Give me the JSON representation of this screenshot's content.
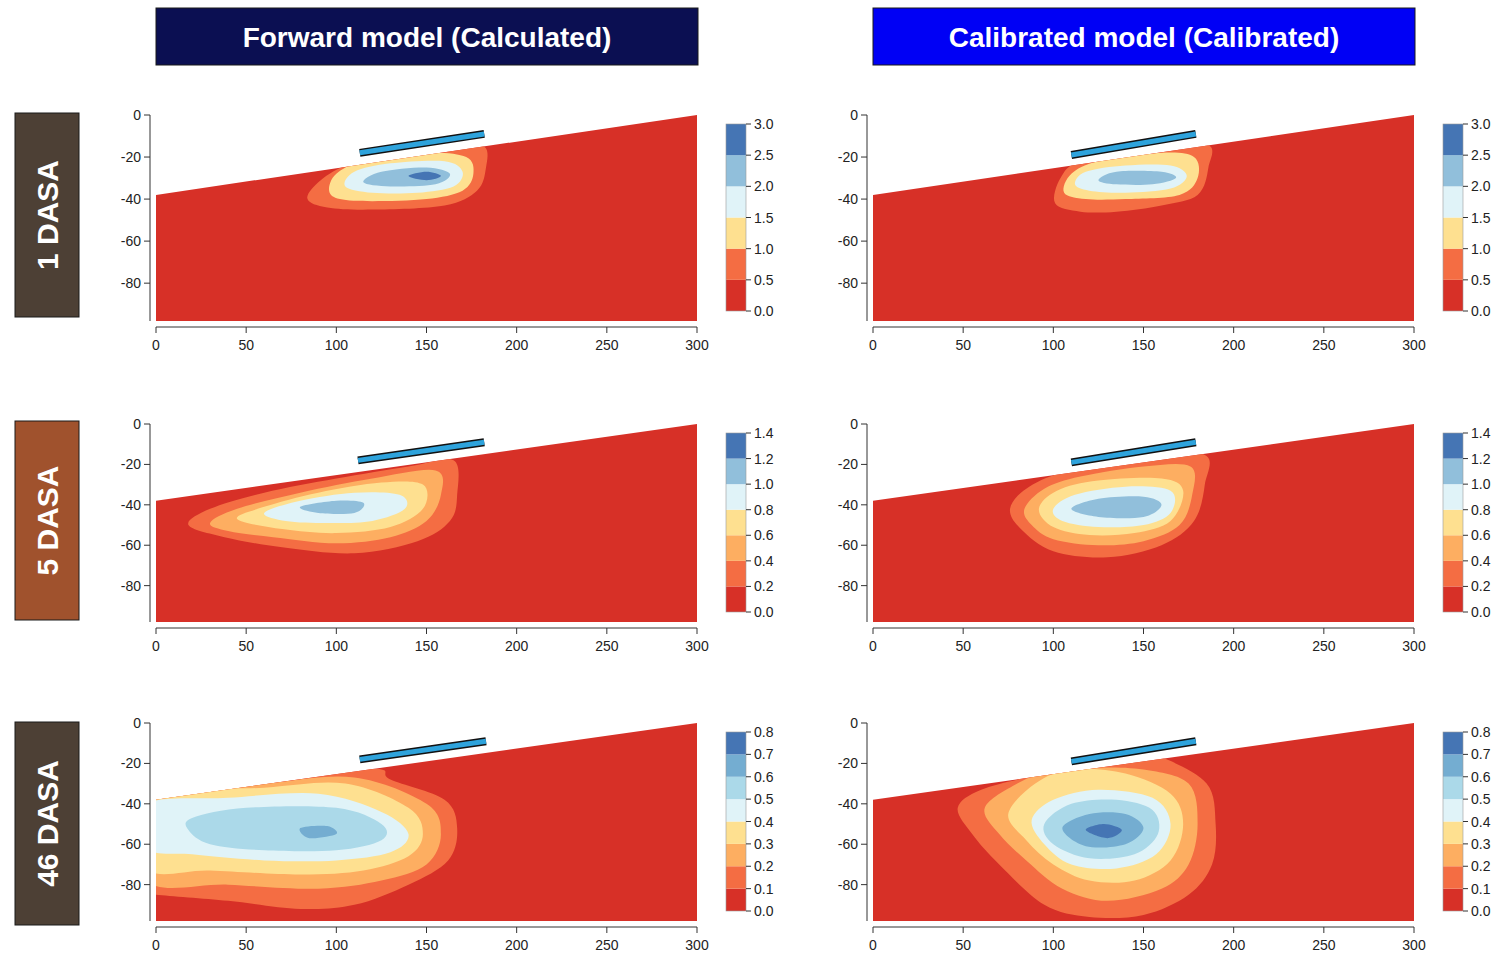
{
  "columns": [
    "Forward model (Calculated)",
    "Calibrated model (Calibrated)"
  ],
  "rows": [
    "1 DASA",
    "5 DASA",
    "46 DASA"
  ],
  "chart_data": [
    {
      "type": "contour",
      "xlim": [
        0,
        300
      ],
      "ylim": [
        -98,
        0
      ],
      "xticks": [
        0,
        50,
        100,
        150,
        200,
        250,
        300
      ],
      "yticks": [
        0,
        -20,
        -40,
        -60,
        -80
      ],
      "zlim": [
        0,
        3
      ],
      "zticks": [
        {
          "value": 0,
          "label": "0.0"
        },
        0.5,
        {
          "value": 1,
          "label": "1.0"
        },
        1.5,
        {
          "value": 2,
          "label": "2.0"
        },
        2.5,
        {
          "value": 3,
          "label": "3.0"
        }
      ],
      "colors": [
        "#d73027",
        "#f46d43",
        "#fee090",
        "#e0f3f8",
        "#91bfdb",
        "#4575b4"
      ],
      "surface": {
        "x": [
          0,
          300
        ],
        "y": [
          -38,
          0
        ]
      },
      "emitter": {
        "x": [
          113,
          182
        ],
        "y": [
          -18,
          -9
        ]
      },
      "contours": [
        {
          "level": 0.5,
          "x": [
            84,
            90,
            105,
            130,
            165,
            182,
            183,
            178,
            160,
            120,
            95
          ],
          "y": [
            -40,
            -32,
            -24,
            -18,
            -14,
            -15,
            -25,
            -36,
            -43,
            -45,
            -44
          ]
        },
        {
          "level": 1,
          "x": [
            96,
            100,
            115,
            150,
            172,
            176,
            170,
            150,
            120,
            102
          ],
          "y": [
            -36,
            -28,
            -22,
            -18,
            -20,
            -28,
            -36,
            -40,
            -41,
            -40
          ]
        },
        {
          "level": 1.5,
          "x": [
            105,
            110,
            130,
            160,
            170,
            165,
            145,
            120
          ],
          "y": [
            -34,
            -27,
            -23,
            -22,
            -27,
            -34,
            -37,
            -37
          ]
        },
        {
          "level": 2,
          "x": [
            115,
            125,
            150,
            163,
            155,
            130
          ],
          "y": [
            -32,
            -27,
            -25,
            -28,
            -33,
            -34
          ]
        },
        {
          "level": 2.5,
          "x": [
            140,
            150,
            158,
            150
          ],
          "y": [
            -29,
            -27,
            -29,
            -31
          ]
        }
      ]
    },
    {
      "type": "contour",
      "xlim": [
        0,
        300
      ],
      "ylim": [
        -98,
        0
      ],
      "xticks": [
        0,
        50,
        100,
        150,
        200,
        250,
        300
      ],
      "yticks": [
        0,
        -20,
        -40,
        -60,
        -80
      ],
      "zlim": [
        0,
        3
      ],
      "zticks": [
        {
          "value": 0,
          "label": "0.0"
        },
        0.5,
        {
          "value": 1,
          "label": "1.0"
        },
        1.5,
        {
          "value": 2,
          "label": "2.0"
        },
        2.5,
        {
          "value": 3,
          "label": "3.0"
        }
      ],
      "colors": [
        "#d73027",
        "#f46d43",
        "#fee090",
        "#e0f3f8",
        "#91bfdb",
        "#4575b4"
      ],
      "surface": {
        "x": [
          0,
          300
        ],
        "y": [
          -38,
          0
        ]
      },
      "emitter": {
        "x": [
          110,
          179
        ],
        "y": [
          -19,
          -9
        ]
      },
      "contours": [
        {
          "level": 0.5,
          "x": [
            101,
            104,
            115,
            150,
            185,
            186,
            180,
            160,
            135,
            115
          ],
          "y": [
            -42,
            -30,
            -22,
            -17,
            -14,
            -25,
            -38,
            -43,
            -46,
            -46
          ]
        },
        {
          "level": 1,
          "x": [
            106,
            110,
            125,
            160,
            178,
            180,
            170,
            140,
            118
          ],
          "y": [
            -37,
            -28,
            -22,
            -18,
            -20,
            -30,
            -38,
            -40,
            -40
          ]
        },
        {
          "level": 1.5,
          "x": [
            112,
            118,
            140,
            165,
            174,
            165,
            140,
            120
          ],
          "y": [
            -33,
            -27,
            -24,
            -24,
            -29,
            -35,
            -37,
            -36
          ]
        },
        {
          "level": 2,
          "x": [
            125,
            135,
            160,
            168,
            155,
            135
          ],
          "y": [
            -31,
            -27,
            -27,
            -30,
            -33,
            -33
          ]
        }
      ]
    },
    {
      "type": "contour",
      "xlim": [
        0,
        300
      ],
      "ylim": [
        -98,
        0
      ],
      "xticks": [
        0,
        50,
        100,
        150,
        200,
        250,
        300
      ],
      "yticks": [
        0,
        -20,
        -40,
        -60,
        -80
      ],
      "zlim": [
        0,
        1.4
      ],
      "zticks": [
        {
          "value": 0,
          "label": "0.0"
        },
        0.2,
        0.4,
        0.6,
        0.8,
        {
          "value": 1,
          "label": "1.0"
        },
        1.2,
        1.4
      ],
      "colors": [
        "#d73027",
        "#f46d43",
        "#fdae61",
        "#fee090",
        "#e0f3f8",
        "#91bfdb",
        "#4575b4"
      ],
      "surface": {
        "x": [
          0,
          300
        ],
        "y": [
          -38,
          0
        ]
      },
      "emitter": {
        "x": [
          112,
          182
        ],
        "y": [
          -18,
          -9
        ]
      },
      "contours": [
        {
          "level": 0.2,
          "x": [
            18,
            30,
            60,
            100,
            140,
            165,
            167,
            163,
            145,
            110,
            70,
            38
          ],
          "y": [
            -50,
            -42,
            -34,
            -27,
            -21,
            -18,
            -35,
            -48,
            -58,
            -64,
            -61,
            -56
          ]
        },
        {
          "level": 0.4,
          "x": [
            30,
            45,
            80,
            120,
            155,
            158,
            150,
            130,
            100,
            65,
            40
          ],
          "y": [
            -49,
            -42,
            -34,
            -27,
            -23,
            -35,
            -48,
            -56,
            -59,
            -56,
            -53
          ]
        },
        {
          "level": 0.6,
          "x": [
            45,
            60,
            90,
            125,
            148,
            148,
            130,
            100,
            70
          ],
          "y": [
            -47,
            -41,
            -34,
            -29,
            -30,
            -42,
            -51,
            -54,
            -52
          ]
        },
        {
          "level": 0.8,
          "x": [
            60,
            80,
            110,
            135,
            138,
            120,
            95,
            72
          ],
          "y": [
            -44,
            -38,
            -34,
            -35,
            -42,
            -48,
            -49,
            -48
          ]
        },
        {
          "level": 1,
          "x": [
            80,
            100,
            115,
            110,
            90
          ],
          "y": [
            -41,
            -38,
            -39,
            -44,
            -44
          ]
        }
      ]
    },
    {
      "type": "contour",
      "xlim": [
        0,
        300
      ],
      "ylim": [
        -98,
        0
      ],
      "xticks": [
        0,
        50,
        100,
        150,
        200,
        250,
        300
      ],
      "yticks": [
        0,
        -20,
        -40,
        -60,
        -80
      ],
      "zlim": [
        0,
        1.4
      ],
      "zticks": [
        {
          "value": 0,
          "label": "0.0"
        },
        0.2,
        0.4,
        0.6,
        0.8,
        {
          "value": 1,
          "label": "1.0"
        },
        1.2,
        1.4
      ],
      "colors": [
        "#d73027",
        "#f46d43",
        "#fdae61",
        "#fee090",
        "#e0f3f8",
        "#91bfdb",
        "#4575b4"
      ],
      "surface": {
        "x": [
          0,
          300
        ],
        "y": [
          -38,
          0
        ]
      },
      "emitter": {
        "x": [
          110,
          179
        ],
        "y": [
          -19,
          -9
        ]
      },
      "contours": [
        {
          "level": 0.2,
          "x": [
            76,
            85,
            105,
            140,
            183,
            184,
            178,
            160,
            130,
            100,
            82
          ],
          "y": [
            -42,
            -32,
            -24,
            -18,
            -15,
            -30,
            -48,
            -60,
            -66,
            -63,
            -52
          ]
        },
        {
          "level": 0.4,
          "x": [
            84,
            95,
            115,
            150,
            176,
            177,
            170,
            150,
            125,
            100,
            88
          ],
          "y": [
            -42,
            -32,
            -26,
            -21,
            -21,
            -35,
            -50,
            -58,
            -60,
            -57,
            -50
          ]
        },
        {
          "level": 0.6,
          "x": [
            92,
            102,
            125,
            160,
            172,
            165,
            145,
            120,
            100
          ],
          "y": [
            -42,
            -33,
            -28,
            -27,
            -33,
            -48,
            -54,
            -55,
            -51
          ]
        },
        {
          "level": 0.8,
          "x": [
            100,
            112,
            140,
            165,
            165,
            150,
            125,
            105
          ],
          "y": [
            -42,
            -35,
            -31,
            -33,
            -44,
            -50,
            -51,
            -48
          ]
        },
        {
          "level": 1,
          "x": [
            110,
            125,
            150,
            160,
            150,
            125
          ],
          "y": [
            -42,
            -37,
            -36,
            -40,
            -46,
            -46
          ]
        }
      ]
    },
    {
      "type": "contour",
      "xlim": [
        0,
        300
      ],
      "ylim": [
        -98,
        0
      ],
      "xticks": [
        0,
        50,
        100,
        150,
        200,
        250,
        300
      ],
      "yticks": [
        0,
        -20,
        -40,
        -60,
        -80
      ],
      "zlim": [
        0,
        0.8
      ],
      "zticks": [
        {
          "value": 0,
          "label": "0.0"
        },
        0.1,
        0.2,
        0.3,
        0.4,
        0.5,
        0.6,
        0.7,
        0.8
      ],
      "colors": [
        "#d73027",
        "#f46d43",
        "#fdae61",
        "#fee090",
        "#e0f3f8",
        "#abd9e9",
        "#74add1",
        "#4575b4"
      ],
      "surface": {
        "x": [
          0,
          300
        ],
        "y": [
          -38,
          0
        ]
      },
      "emitter": {
        "x": [
          113,
          183
        ],
        "y": [
          -18,
          -9
        ]
      },
      "contours": [
        {
          "level": 0.1,
          "x": [
            -5,
            50,
            100,
            125,
            130,
            160,
            167,
            162,
            140,
            110,
            80,
            40,
            0,
            -5
          ],
          "y": [
            -36,
            -30,
            -24,
            -23,
            -28,
            -38,
            -52,
            -68,
            -80,
            -90,
            -92,
            -88,
            -85,
            -84
          ]
        },
        {
          "level": 0.2,
          "x": [
            -5,
            60,
            110,
            150,
            158,
            150,
            125,
            90,
            40,
            -5
          ],
          "y": [
            -36,
            -30,
            -27,
            -40,
            -55,
            -70,
            -78,
            -82,
            -80,
            -78
          ]
        },
        {
          "level": 0.3,
          "x": [
            -5,
            60,
            105,
            140,
            148,
            140,
            115,
            80,
            30,
            -5
          ],
          "y": [
            -37,
            -32,
            -30,
            -42,
            -55,
            -66,
            -73,
            -75,
            -73,
            -72
          ]
        },
        {
          "level": 0.4,
          "x": [
            -5,
            40,
            90,
            125,
            140,
            130,
            100,
            60,
            20,
            -5
          ],
          "y": [
            -40,
            -37,
            -35,
            -44,
            -55,
            -64,
            -68,
            -68,
            -65,
            -62
          ]
        },
        {
          "level": 0.5,
          "x": [
            20,
            50,
            100,
            125,
            125,
            100,
            60,
            30,
            18
          ],
          "y": [
            -47,
            -42,
            -42,
            -50,
            -58,
            -63,
            -63,
            -60,
            -53
          ]
        },
        {
          "level": 0.6,
          "x": [
            80,
            95,
            100,
            85
          ],
          "y": [
            -52,
            -51,
            -55,
            -57
          ]
        }
      ]
    },
    {
      "type": "contour",
      "xlim": [
        0,
        300
      ],
      "ylim": [
        -98,
        0
      ],
      "xticks": [
        0,
        50,
        100,
        150,
        200,
        250,
        300
      ],
      "yticks": [
        0,
        -20,
        -40,
        -60,
        -80
      ],
      "zlim": [
        0,
        0.8
      ],
      "zticks": [
        {
          "value": 0,
          "label": "0.0"
        },
        0.1,
        0.2,
        0.3,
        0.4,
        0.5,
        0.6,
        0.7,
        0.8
      ],
      "colors": [
        "#d73027",
        "#f46d43",
        "#fdae61",
        "#fee090",
        "#e0f3f8",
        "#abd9e9",
        "#74add1",
        "#4575b4"
      ],
      "surface": {
        "x": [
          0,
          300
        ],
        "y": [
          -38,
          0
        ]
      },
      "emitter": {
        "x": [
          110,
          179
        ],
        "y": [
          -19,
          -9
        ]
      },
      "contours": [
        {
          "level": 0.1,
          "x": [
            47,
            60,
            90,
            110,
            150,
            160,
            185,
            190,
            188,
            175,
            150,
            120,
            95,
            70,
            55
          ],
          "y": [
            -42,
            -33,
            -26,
            -23,
            -18,
            -17,
            -30,
            -50,
            -70,
            -85,
            -95,
            -96,
            -90,
            -70,
            -55
          ]
        },
        {
          "level": 0.2,
          "x": [
            62,
            80,
            100,
            120,
            150,
            175,
            180,
            175,
            160,
            130,
            105,
            85,
            70
          ],
          "y": [
            -42,
            -30,
            -23,
            -22,
            -23,
            -30,
            -50,
            -70,
            -82,
            -88,
            -82,
            -68,
            -55
          ]
        },
        {
          "level": 0.3,
          "x": [
            75,
            90,
            110,
            140,
            165,
            172,
            165,
            145,
            120,
            100,
            85
          ],
          "y": [
            -45,
            -30,
            -23,
            -25,
            -35,
            -50,
            -68,
            -78,
            -78,
            -70,
            -58
          ]
        },
        {
          "level": 0.4,
          "x": [
            88,
            100,
            125,
            155,
            165,
            157,
            135,
            110,
            95
          ],
          "y": [
            -48,
            -38,
            -33,
            -37,
            -50,
            -65,
            -72,
            -70,
            -60
          ]
        },
        {
          "level": 0.5,
          "x": [
            95,
            110,
            135,
            155,
            158,
            145,
            120,
            100
          ],
          "y": [
            -50,
            -40,
            -38,
            -43,
            -55,
            -65,
            -67,
            -60
          ]
        },
        {
          "level": 0.6,
          "x": [
            105,
            120,
            140,
            150,
            140,
            118
          ],
          "y": [
            -52,
            -45,
            -45,
            -52,
            -60,
            -61
          ]
        },
        {
          "level": 0.7,
          "x": [
            118,
            128,
            138,
            130
          ],
          "y": [
            -53,
            -50,
            -53,
            -57
          ]
        }
      ]
    }
  ]
}
